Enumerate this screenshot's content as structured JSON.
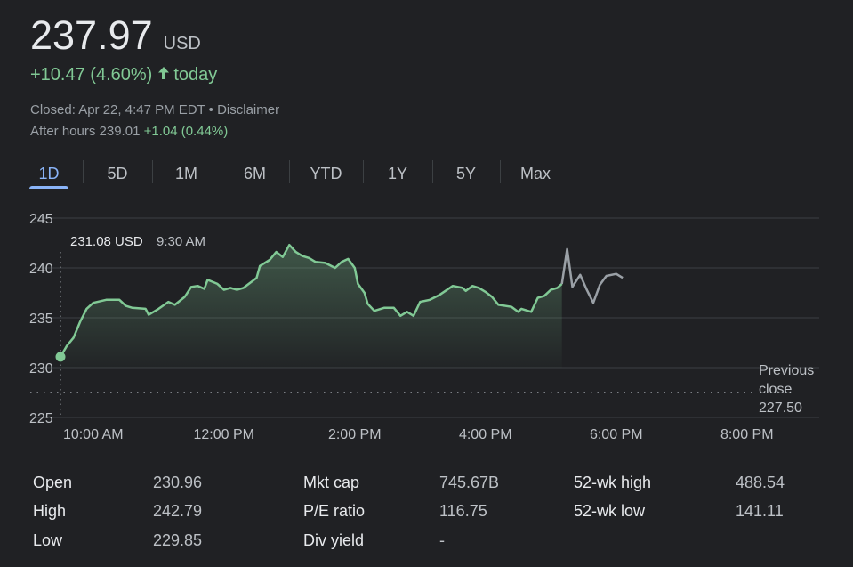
{
  "quote": {
    "price": "237.97",
    "currency": "USD",
    "change": "+10.47 (4.60%)",
    "change_suffix": "today",
    "closed_text": "Closed: Apr 22, 4:47 PM EDT • Disclaimer",
    "after_hours_label": "After hours 239.01",
    "after_hours_change": "+1.04 (0.44%)"
  },
  "tabs": [
    "1D",
    "5D",
    "1M",
    "6M",
    "YTD",
    "1Y",
    "5Y",
    "Max"
  ],
  "active_tab": "1D",
  "colors": {
    "background": "#202124",
    "positive": "#81c995",
    "tab_active": "#8ab4f8",
    "after_hours_line": "#9aa0a6"
  },
  "chart_data": {
    "type": "line",
    "tooltip": {
      "value": "231.08 USD",
      "time": "9:30 AM"
    },
    "y_ticks": [
      "245",
      "240",
      "235",
      "230",
      "225"
    ],
    "ylim": [
      225,
      245
    ],
    "x_ticks": [
      "10:00 AM",
      "12:00 PM",
      "2:00 PM",
      "4:00 PM",
      "6:00 PM",
      "8:00 PM"
    ],
    "previous_close": {
      "label_line1": "Previous",
      "label_line2": "close",
      "value": "227.50",
      "y": 227.5
    },
    "grid": true,
    "regular_session": [
      [
        9.5,
        231.08
      ],
      [
        9.6,
        232.2
      ],
      [
        9.7,
        233.0
      ],
      [
        9.8,
        234.6
      ],
      [
        9.9,
        235.9
      ],
      [
        10.0,
        236.5
      ],
      [
        10.2,
        236.8
      ],
      [
        10.4,
        236.8
      ],
      [
        10.5,
        236.2
      ],
      [
        10.6,
        236.0
      ],
      [
        10.8,
        235.9
      ],
      [
        10.85,
        235.3
      ],
      [
        11.0,
        235.9
      ],
      [
        11.15,
        236.6
      ],
      [
        11.25,
        236.3
      ],
      [
        11.4,
        237.1
      ],
      [
        11.5,
        238.1
      ],
      [
        11.6,
        238.2
      ],
      [
        11.7,
        237.9
      ],
      [
        11.75,
        238.8
      ],
      [
        11.9,
        238.4
      ],
      [
        12.0,
        237.8
      ],
      [
        12.1,
        238.0
      ],
      [
        12.2,
        237.8
      ],
      [
        12.3,
        238.0
      ],
      [
        12.5,
        239.0
      ],
      [
        12.55,
        240.2
      ],
      [
        12.7,
        240.8
      ],
      [
        12.8,
        241.6
      ],
      [
        12.9,
        241.1
      ],
      [
        13.0,
        242.3
      ],
      [
        13.1,
        241.6
      ],
      [
        13.2,
        241.2
      ],
      [
        13.3,
        241.0
      ],
      [
        13.4,
        240.6
      ],
      [
        13.55,
        240.5
      ],
      [
        13.7,
        240.0
      ],
      [
        13.8,
        240.6
      ],
      [
        13.9,
        240.9
      ],
      [
        14.0,
        240.0
      ],
      [
        14.05,
        238.4
      ],
      [
        14.15,
        237.5
      ],
      [
        14.2,
        236.4
      ],
      [
        14.3,
        235.7
      ],
      [
        14.45,
        236.0
      ],
      [
        14.6,
        236.0
      ],
      [
        14.7,
        235.2
      ],
      [
        14.8,
        235.6
      ],
      [
        14.9,
        235.2
      ],
      [
        15.0,
        236.6
      ],
      [
        15.15,
        236.8
      ],
      [
        15.3,
        237.3
      ],
      [
        15.5,
        238.2
      ],
      [
        15.65,
        238.0
      ],
      [
        15.7,
        237.7
      ],
      [
        15.8,
        238.2
      ],
      [
        15.9,
        238.0
      ],
      [
        16.0,
        237.6
      ],
      [
        16.1,
        237.1
      ],
      [
        16.2,
        236.3
      ],
      [
        16.4,
        236.1
      ],
      [
        16.5,
        235.6
      ],
      [
        16.55,
        235.9
      ],
      [
        16.7,
        235.6
      ],
      [
        16.8,
        237.0
      ],
      [
        16.9,
        237.2
      ],
      [
        17.0,
        237.8
      ],
      [
        17.1,
        238.0
      ],
      [
        17.17,
        238.4
      ]
    ],
    "after_hours": [
      [
        17.17,
        238.4
      ],
      [
        17.25,
        241.9
      ],
      [
        17.33,
        238.1
      ],
      [
        17.45,
        239.3
      ],
      [
        17.55,
        237.8
      ],
      [
        17.65,
        236.5
      ],
      [
        17.75,
        238.3
      ],
      [
        17.85,
        239.2
      ],
      [
        18.0,
        239.4
      ],
      [
        18.1,
        239.0
      ]
    ]
  },
  "stats": [
    {
      "label": "Open",
      "value": "230.96"
    },
    {
      "label": "High",
      "value": "242.79"
    },
    {
      "label": "Low",
      "value": "229.85"
    },
    {
      "label": "Mkt cap",
      "value": "745.67B"
    },
    {
      "label": "P/E ratio",
      "value": "116.75"
    },
    {
      "label": "Div yield",
      "value": "-"
    },
    {
      "label": "52-wk high",
      "value": "488.54"
    },
    {
      "label": "52-wk low",
      "value": "141.11"
    }
  ]
}
